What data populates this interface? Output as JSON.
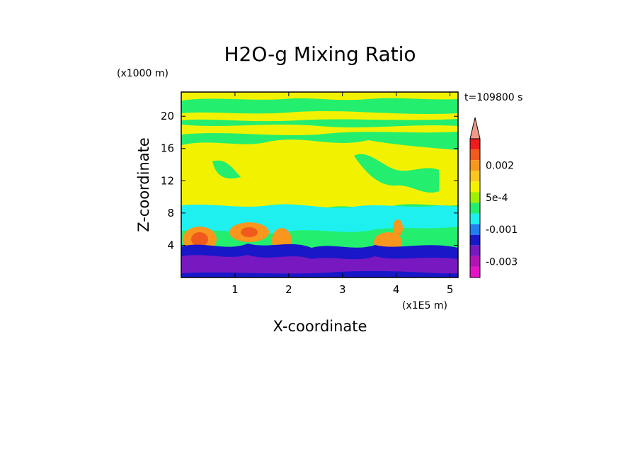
{
  "chart_data": {
    "type": "heatmap",
    "title": "H2O-g Mixing Ratio",
    "xlabel": "X-coordinate",
    "ylabel": "Z-coordinate",
    "x_unit": "(x1E5 m)",
    "y_unit": "(x1000 m)",
    "time_label": "t=109800 s",
    "xlim": [
      0,
      5.15
    ],
    "ylim": [
      0,
      23
    ],
    "x_ticks": [
      "1",
      "2",
      "3",
      "4",
      "5"
    ],
    "x_tick_values": [
      1,
      2,
      3,
      4,
      5
    ],
    "y_ticks": [
      "4",
      "8",
      "12",
      "16",
      "20"
    ],
    "y_tick_values": [
      4,
      8,
      12,
      16,
      20
    ],
    "colorbar": {
      "labels": [
        {
          "text": "0.002",
          "level": 0.002
        },
        {
          "text": "5e-4",
          "level": 0.0005
        },
        {
          "text": "-0.001",
          "level": -0.001
        },
        {
          "text": "-0.003",
          "level": -0.003
        }
      ],
      "levels": [
        0.0035,
        0.003,
        0.0025,
        0.002,
        0.0015,
        0.001,
        0.0005,
        0,
        -0.0005,
        -0.001,
        -0.0015,
        -0.002,
        -0.003,
        -0.004
      ],
      "colors": [
        "#f29a8a",
        "#ee1c1c",
        "#f05a1c",
        "#f8961e",
        "#fcc820",
        "#f2f200",
        "#9ef000",
        "#24ee6e",
        "#1ef0f0",
        "#2080f0",
        "#1818c8",
        "#7818c0",
        "#b414b4",
        "#e614c8"
      ]
    },
    "field_description_levels": {
      "upper_band_z": [
        18,
        23
      ],
      "mid_yellow_z": [
        9,
        18
      ],
      "cyan_band_z": [
        6,
        9
      ],
      "low_purple_z": [
        0,
        4
      ]
    }
  }
}
